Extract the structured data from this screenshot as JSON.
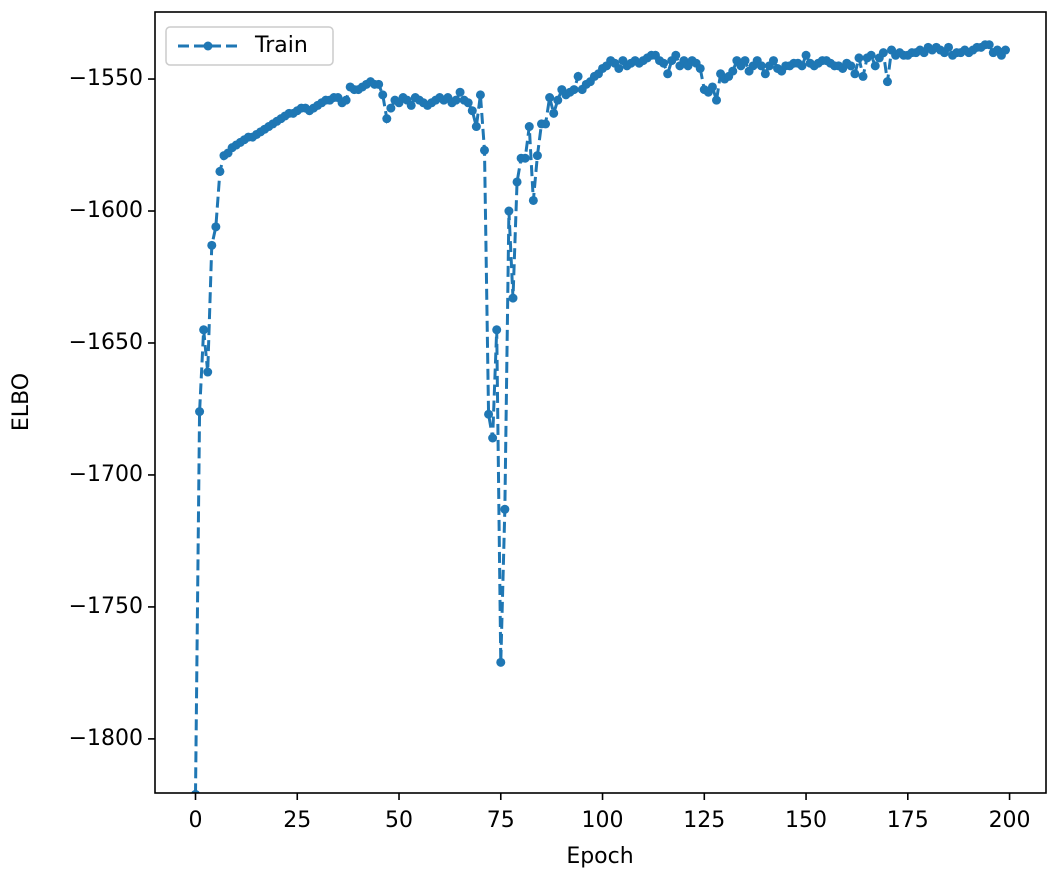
{
  "chart_data": {
    "type": "line",
    "xlabel": "Epoch",
    "ylabel": "ELBO",
    "x": [
      0,
      1,
      2,
      3,
      4,
      5,
      6,
      7,
      8,
      9,
      10,
      11,
      12,
      13,
      14,
      15,
      16,
      17,
      18,
      19,
      20,
      21,
      22,
      23,
      24,
      25,
      26,
      27,
      28,
      29,
      30,
      31,
      32,
      33,
      34,
      35,
      36,
      37,
      38,
      39,
      40,
      41,
      42,
      43,
      44,
      45,
      46,
      47,
      48,
      49,
      50,
      51,
      52,
      53,
      54,
      55,
      56,
      57,
      58,
      59,
      60,
      61,
      62,
      63,
      64,
      65,
      66,
      67,
      68,
      69,
      70,
      71,
      72,
      73,
      74,
      75,
      76,
      77,
      78,
      79,
      80,
      81,
      82,
      83,
      84,
      85,
      86,
      87,
      88,
      89,
      90,
      91,
      92,
      93,
      94,
      95,
      96,
      97,
      98,
      99,
      100,
      101,
      102,
      103,
      104,
      105,
      106,
      107,
      108,
      109,
      110,
      111,
      112,
      113,
      114,
      115,
      116,
      117,
      118,
      119,
      120,
      121,
      122,
      123,
      124,
      125,
      126,
      127,
      128,
      129,
      130,
      131,
      132,
      133,
      134,
      135,
      136,
      137,
      138,
      139,
      140,
      141,
      142,
      143,
      144,
      145,
      146,
      147,
      148,
      149,
      150,
      151,
      152,
      153,
      154,
      155,
      156,
      157,
      158,
      159,
      160,
      161,
      162,
      163,
      164,
      165,
      166,
      167,
      168,
      169,
      170,
      171,
      172,
      173,
      174,
      175,
      176,
      177,
      178,
      179,
      180,
      181,
      182,
      183,
      184,
      185,
      186,
      187,
      188,
      189,
      190,
      191,
      192,
      193,
      194,
      195,
      196,
      197,
      198,
      199
    ],
    "series": [
      {
        "name": "Train",
        "color": "#1f77b4",
        "values": [
          -1821,
          -1676,
          -1645,
          -1661,
          -1613,
          -1606,
          -1585,
          -1579,
          -1578,
          -1576,
          -1575,
          -1574,
          -1573,
          -1572,
          -1572,
          -1571,
          -1570,
          -1569,
          -1568,
          -1567,
          -1566,
          -1565,
          -1564,
          -1563,
          -1563,
          -1562,
          -1561,
          -1561,
          -1562,
          -1561,
          -1560,
          -1559,
          -1558,
          -1558,
          -1557,
          -1557,
          -1559,
          -1558,
          -1553,
          -1554,
          -1554,
          -1553,
          -1552,
          -1551,
          -1552,
          -1552,
          -1556,
          -1565,
          -1561,
          -1558,
          -1559,
          -1557,
          -1558,
          -1560,
          -1557,
          -1558,
          -1559,
          -1560,
          -1559,
          -1558,
          -1557,
          -1558,
          -1557,
          -1559,
          -1558,
          -1555,
          -1558,
          -1559,
          -1562,
          -1568,
          -1556,
          -1577,
          -1677,
          -1686,
          -1645,
          -1771,
          -1713,
          -1600,
          -1633,
          -1589,
          -1580,
          -1580,
          -1568,
          -1596,
          -1579,
          -1567,
          -1567,
          -1557,
          -1563,
          -1558,
          -1554,
          -1556,
          -1555,
          -1554,
          -1549,
          -1554,
          -1552,
          -1551,
          -1549,
          -1548,
          -1546,
          -1545,
          -1543,
          -1544,
          -1546,
          -1543,
          -1545,
          -1544,
          -1543,
          -1544,
          -1543,
          -1542,
          -1541,
          -1541,
          -1543,
          -1544,
          -1548,
          -1543,
          -1541,
          -1545,
          -1543,
          -1545,
          -1543,
          -1544,
          -1546,
          -1554,
          -1555,
          -1553,
          -1558,
          -1548,
          -1550,
          -1549,
          -1547,
          -1543,
          -1545,
          -1543,
          -1547,
          -1545,
          -1543,
          -1545,
          -1548,
          -1545,
          -1543,
          -1546,
          -1547,
          -1545,
          -1545,
          -1544,
          -1544,
          -1545,
          -1541,
          -1544,
          -1545,
          -1544,
          -1543,
          -1543,
          -1544,
          -1545,
          -1545,
          -1546,
          -1544,
          -1545,
          -1548,
          -1542,
          -1549,
          -1542,
          -1541,
          -1545,
          -1542,
          -1540,
          -1551,
          -1539,
          -1541,
          -1540,
          -1541,
          -1541,
          -1540,
          -1540,
          -1539,
          -1540,
          -1538,
          -1539,
          -1538,
          -1539,
          -1540,
          -1538,
          -1541,
          -1540,
          -1540,
          -1539,
          -1540,
          -1539,
          -1538,
          -1538,
          -1537,
          -1537,
          -1540,
          -1539,
          -1541,
          -1539
        ]
      }
    ],
    "xlim": [
      -9.95,
      208.95
    ],
    "ylim": [
      -1820.5,
      -1524.6
    ],
    "xticks": [
      0,
      25,
      50,
      75,
      100,
      125,
      150,
      175,
      200
    ],
    "yticks": [
      {
        "value": -1800,
        "label": "−1800"
      },
      {
        "value": -1750,
        "label": "−1750"
      },
      {
        "value": -1700,
        "label": "−1700"
      },
      {
        "value": -1650,
        "label": "−1650"
      },
      {
        "value": -1600,
        "label": "−1600"
      },
      {
        "value": -1550,
        "label": "−1550"
      }
    ],
    "legend": "upper left",
    "line_style": "dashed",
    "marker": "circle"
  }
}
